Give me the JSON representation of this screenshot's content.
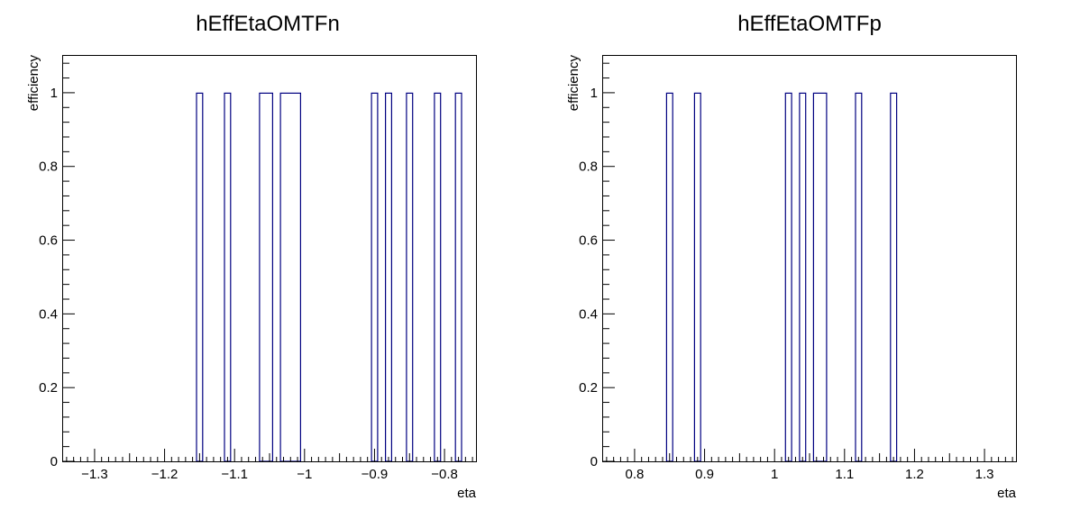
{
  "chart_data": [
    {
      "type": "bar",
      "title": "hEffEtaOMTFn",
      "xlabel": "eta",
      "ylabel": "efficiency",
      "xlim": [
        -1.345,
        -0.755
      ],
      "ylim": [
        0,
        1.1
      ],
      "xticks": [
        -1.3,
        -1.2,
        -1.1,
        -1.0,
        -0.9,
        -0.8
      ],
      "xtick_labels": [
        "−1.3",
        "−1.2",
        "−1.1",
        "−1",
        "−0.9",
        "−0.8"
      ],
      "yticks": [
        0,
        0.2,
        0.4,
        0.6,
        0.8,
        1.0
      ],
      "ytick_labels": [
        "0",
        "0.2",
        "0.4",
        "0.6",
        "0.8",
        "1"
      ],
      "grid": false,
      "line_color": "#000080",
      "bins": [
        {
          "x0": -1.155,
          "x1": -1.145,
          "value": 1
        },
        {
          "x0": -1.115,
          "x1": -1.105,
          "value": 1
        },
        {
          "x0": -1.065,
          "x1": -1.045,
          "value": 1
        },
        {
          "x0": -1.035,
          "x1": -1.005,
          "value": 1
        },
        {
          "x0": -0.905,
          "x1": -0.895,
          "value": 1
        },
        {
          "x0": -0.885,
          "x1": -0.875,
          "value": 1
        },
        {
          "x0": -0.855,
          "x1": -0.845,
          "value": 1
        },
        {
          "x0": -0.815,
          "x1": -0.805,
          "value": 1
        },
        {
          "x0": -0.785,
          "x1": -0.775,
          "value": 1
        }
      ]
    },
    {
      "type": "bar",
      "title": "hEffEtaOMTFp",
      "xlabel": "eta",
      "ylabel": "efficiency",
      "xlim": [
        0.755,
        1.345
      ],
      "ylim": [
        0,
        1.1
      ],
      "xticks": [
        0.8,
        0.9,
        1.0,
        1.1,
        1.2,
        1.3
      ],
      "xtick_labels": [
        "0.8",
        "0.9",
        "1",
        "1.1",
        "1.2",
        "1.3"
      ],
      "yticks": [
        0,
        0.2,
        0.4,
        0.6,
        0.8,
        1.0
      ],
      "ytick_labels": [
        "0",
        "0.2",
        "0.4",
        "0.6",
        "0.8",
        "1"
      ],
      "grid": false,
      "line_color": "#000080",
      "bins": [
        {
          "x0": 0.845,
          "x1": 0.855,
          "value": 1
        },
        {
          "x0": 0.885,
          "x1": 0.895,
          "value": 1
        },
        {
          "x0": 1.015,
          "x1": 1.025,
          "value": 1
        },
        {
          "x0": 1.035,
          "x1": 1.045,
          "value": 1
        },
        {
          "x0": 1.055,
          "x1": 1.075,
          "value": 1
        },
        {
          "x0": 1.115,
          "x1": 1.125,
          "value": 1
        },
        {
          "x0": 1.165,
          "x1": 1.175,
          "value": 1
        }
      ]
    }
  ]
}
